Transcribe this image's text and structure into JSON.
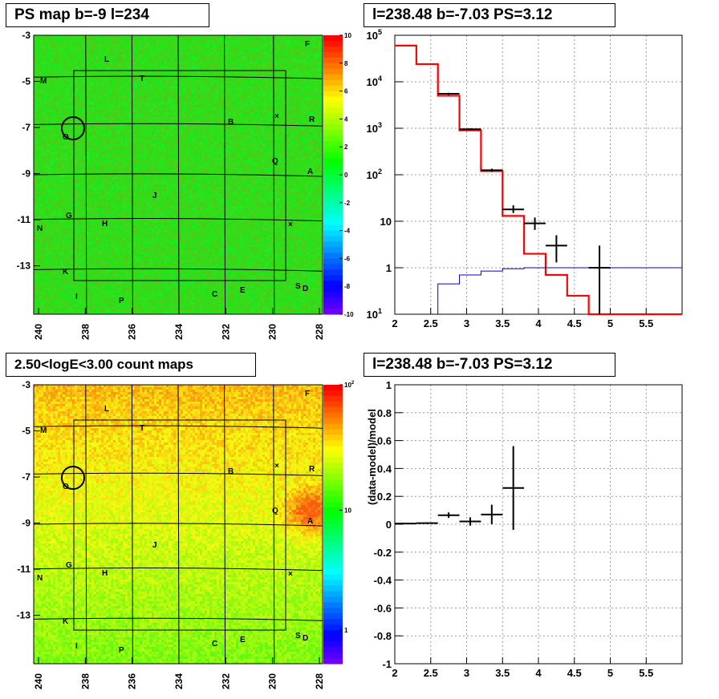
{
  "panels": {
    "tl": {
      "title": "PS map b=-9 l=234"
    },
    "tr": {
      "title": "l=238.48 b=-7.03 PS=3.12"
    },
    "bl": {
      "title": "2.50<logE<3.00 count maps"
    },
    "br": {
      "title": "l=238.48 b=-7.03 PS=3.12"
    }
  },
  "colors": {
    "red_model": "#ff0000",
    "blue_model": "#0000cc",
    "data": "#000000"
  },
  "chart_data": [
    {
      "type": "heatmap",
      "title": "PS map b=-9 l=234",
      "x_ticks": [
        "240",
        "238",
        "236",
        "234",
        "232",
        "230",
        "228"
      ],
      "y_ticks": [
        "-3",
        "-5",
        "-7",
        "-9",
        "-11",
        "-13"
      ],
      "colorbar_ticks": [
        "10",
        "8",
        "6",
        "4",
        "2",
        "0",
        "-2",
        "-4",
        "-6",
        "-8",
        "-10"
      ],
      "labels": [
        "L",
        "T",
        "M",
        "F",
        "B",
        "R",
        "Q",
        "A",
        "O",
        "J",
        "G",
        "H",
        "N",
        "K",
        "I",
        "P",
        "C",
        "E",
        "S",
        "D"
      ],
      "markers": [
        "x",
        "x"
      ]
    },
    {
      "type": "line",
      "title": "l=238.48 b=-7.03 PS=3.12",
      "x_ticks": [
        "2",
        "2.5",
        "3",
        "3.5",
        "4",
        "4.5",
        "5",
        "5.5"
      ],
      "y_ticks": [
        "10^1",
        "1",
        "10",
        "10^2",
        "10^3",
        "10^4",
        "10^5"
      ],
      "y_scale": "log",
      "xlim": [
        2,
        6
      ],
      "ylim": [
        0.1,
        100000
      ],
      "series": [
        {
          "type": "step",
          "color": "red",
          "x_edges": [
            2,
            2.3,
            2.6,
            2.9,
            3.2,
            3.5,
            3.8,
            4.1,
            4.4,
            4.7,
            5.0,
            6.0
          ],
          "values": [
            60000,
            24000,
            5000,
            900,
            120,
            13,
            2,
            0.7,
            0.25,
            0.1,
            0.1
          ]
        },
        {
          "type": "step",
          "color": "blue",
          "x_edges": [
            2.6,
            2.9,
            3.2,
            3.5,
            3.8,
            4.1,
            4.4,
            4.7,
            5.0,
            6.0
          ],
          "values": [
            0.45,
            0.7,
            0.85,
            0.95,
            1,
            1,
            1,
            1,
            1
          ]
        },
        {
          "type": "errorbar",
          "color": "black",
          "points": [
            {
              "x": 2.75,
              "xerr": 0.15,
              "y": 5500,
              "ylo": 5200,
              "yhi": 5800
            },
            {
              "x": 3.05,
              "xerr": 0.15,
              "y": 950,
              "ylo": 900,
              "yhi": 1000
            },
            {
              "x": 3.35,
              "xerr": 0.15,
              "y": 125,
              "ylo": 115,
              "yhi": 135
            },
            {
              "x": 3.65,
              "xerr": 0.15,
              "y": 18,
              "ylo": 15,
              "yhi": 22
            },
            {
              "x": 3.95,
              "xerr": 0.15,
              "y": 9,
              "ylo": 6.5,
              "yhi": 12
            },
            {
              "x": 4.25,
              "xerr": 0.15,
              "y": 3,
              "ylo": 1.3,
              "yhi": 5
            },
            {
              "x": 4.85,
              "xerr": 0.15,
              "y": 1,
              "ylo": 0.1,
              "yhi": 3
            }
          ]
        }
      ]
    },
    {
      "type": "heatmap",
      "title": "2.50<logE<3.00 count maps",
      "x_ticks": [
        "240",
        "238",
        "236",
        "234",
        "232",
        "230",
        "228"
      ],
      "y_ticks": [
        "-3",
        "-5",
        "-7",
        "-9",
        "-11",
        "-13"
      ],
      "colorbar_ticks": [
        "10^2",
        "10",
        "1"
      ],
      "labels": [
        "L",
        "T",
        "M",
        "F",
        "B",
        "R",
        "Q",
        "A",
        "O",
        "J",
        "G",
        "H",
        "N",
        "K",
        "I",
        "P",
        "C",
        "E",
        "S",
        "D"
      ]
    },
    {
      "type": "scatter",
      "title": "l=238.48 b=-7.03 PS=3.12",
      "ylabel": "(data-model)/model",
      "x_ticks": [
        "2",
        "2.5",
        "3",
        "3.5",
        "4",
        "4.5",
        "5",
        "5.5"
      ],
      "y_ticks": [
        "1",
        "0.8",
        "0.6",
        "0.4",
        "0.2",
        "0",
        "-0.2",
        "-0.4",
        "-0.6",
        "-0.8",
        "-1"
      ],
      "xlim": [
        2,
        6
      ],
      "ylim": [
        -1,
        1
      ],
      "points": [
        {
          "x": 2.15,
          "xerr": 0.15,
          "y": 0.005,
          "yerr": 0.005
        },
        {
          "x": 2.45,
          "xerr": 0.15,
          "y": 0.008,
          "yerr": 0.006
        },
        {
          "x": 2.75,
          "xerr": 0.15,
          "y": 0.065,
          "yerr": 0.02
        },
        {
          "x": 3.05,
          "xerr": 0.15,
          "y": 0.02,
          "yerr": 0.03
        },
        {
          "x": 3.35,
          "xerr": 0.15,
          "y": 0.07,
          "yerr": 0.07
        },
        {
          "x": 3.65,
          "xerr": 0.15,
          "y": 0.26,
          "yerr": 0.3
        }
      ]
    }
  ]
}
